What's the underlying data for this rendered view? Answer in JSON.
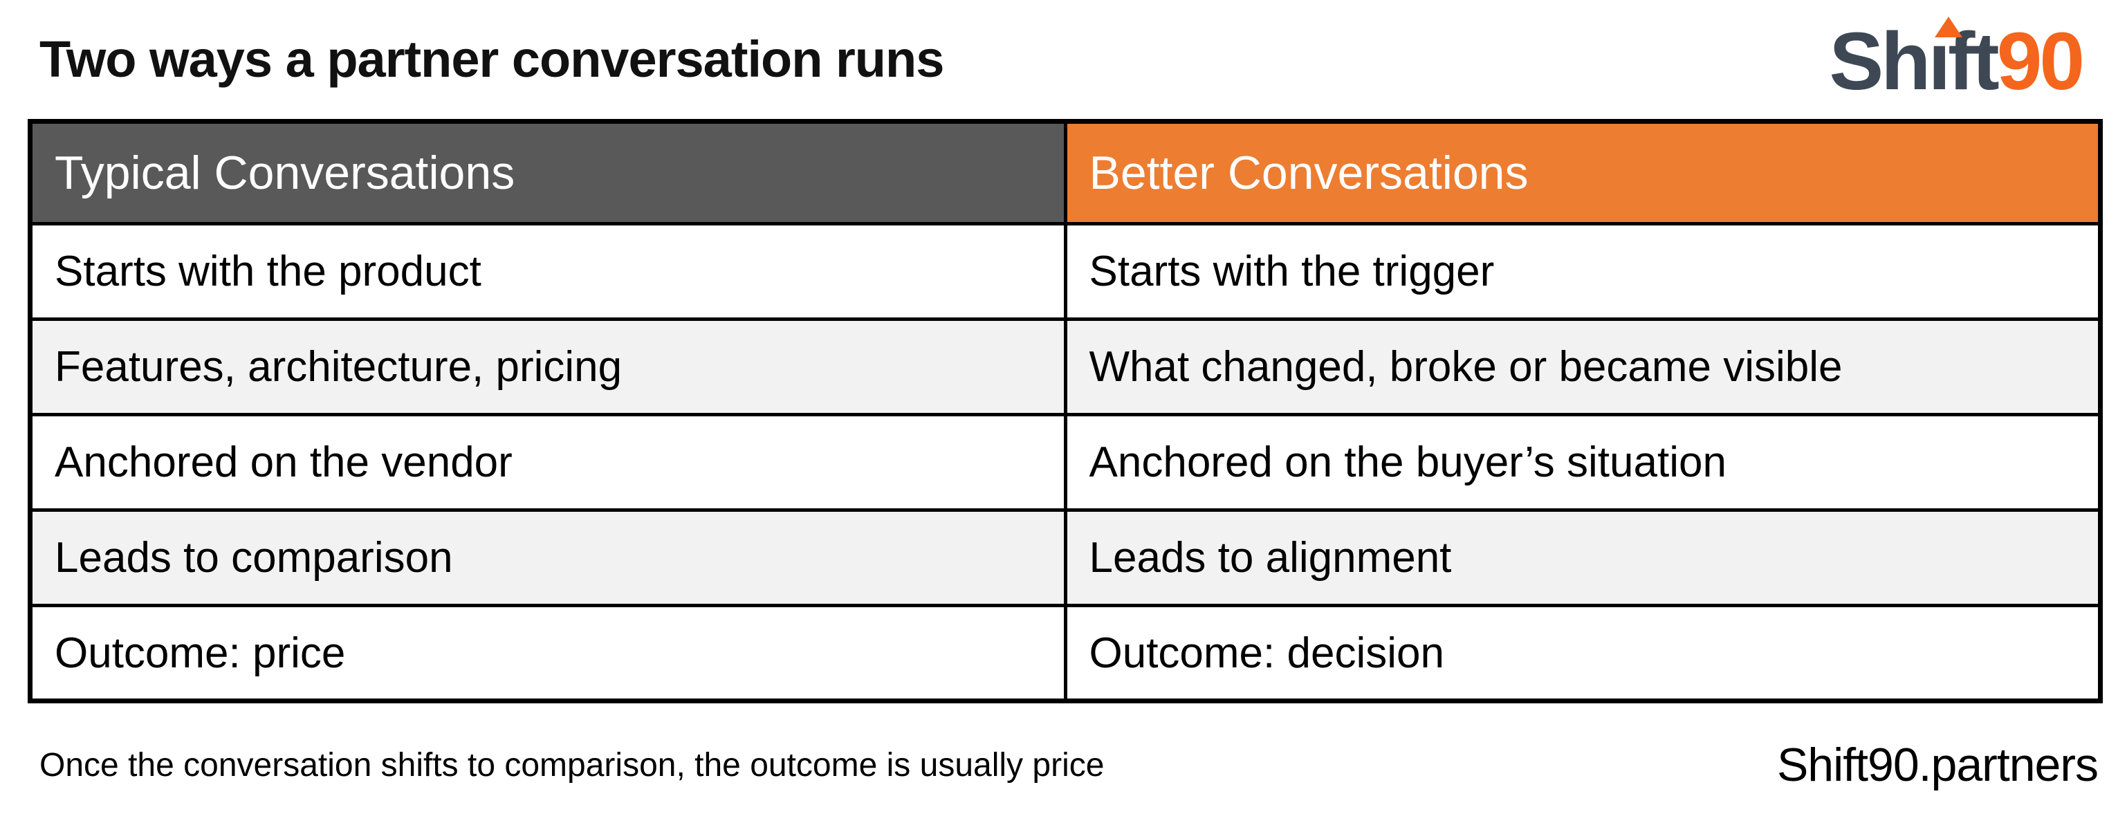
{
  "page": {
    "title": "Two ways a partner conversation runs"
  },
  "logo": {
    "part1": "Sh",
    "part2": "ı",
    "part3": "ft",
    "accent": "90",
    "full_name": "Shift90",
    "colors": {
      "dark": "#3d4854",
      "accent": "#f4661d"
    }
  },
  "table": {
    "headers": [
      {
        "label": "Typical Conversations",
        "bg": "#595959"
      },
      {
        "label": "Better Conversations",
        "bg": "#ed7d31"
      }
    ],
    "row_alt_bg": "#f2f2f2",
    "border_color": "#000000",
    "rows": [
      {
        "left": "Starts with the product",
        "right": "Starts with the trigger"
      },
      {
        "left": "Features, architecture, pricing",
        "right": "What changed, broke or became visible"
      },
      {
        "left": "Anchored on the vendor",
        "right": "Anchored on the buyer’s situation"
      },
      {
        "left": "Leads to comparison",
        "right": "Leads to alignment"
      },
      {
        "left": "Outcome: price",
        "right": "Outcome: decision"
      }
    ]
  },
  "footer": {
    "note": "Once the conversation shifts to comparison, the outcome is usually price",
    "site": "Shift90.partners"
  }
}
